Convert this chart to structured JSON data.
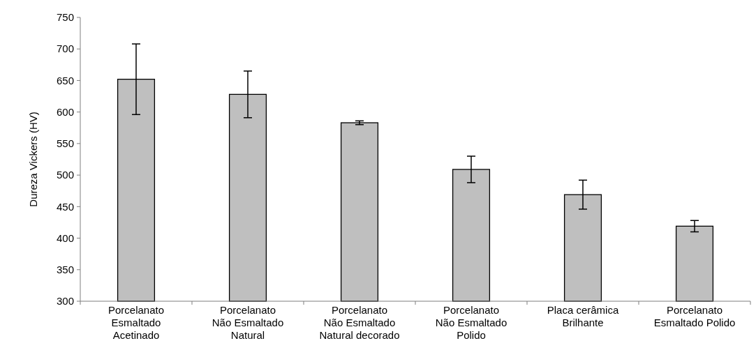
{
  "chart_data": {
    "type": "bar",
    "ylabel": "Dureza Vickers (HV)",
    "categories": [
      "Porcelanato\nEsmaltado\nAcetinado",
      "Porcelanato\nNão Esmaltado\nNatural",
      "Porcelanato\nNão Esmaltado\nNatural decorado",
      "Porcelanato\nNão Esmaltado\nPolido",
      "Placa cerâmica\nBrilhante",
      "Porcelanato\nEsmaltado Polido"
    ],
    "values": [
      652,
      628,
      583,
      509,
      469,
      419
    ],
    "errors": [
      56,
      37,
      3,
      21,
      23,
      9
    ],
    "color": "#bfbfbf",
    "ylim": [
      300,
      750
    ],
    "yticks": [
      300,
      350,
      400,
      450,
      500,
      550,
      600,
      650,
      700,
      750
    ],
    "grid": false
  }
}
